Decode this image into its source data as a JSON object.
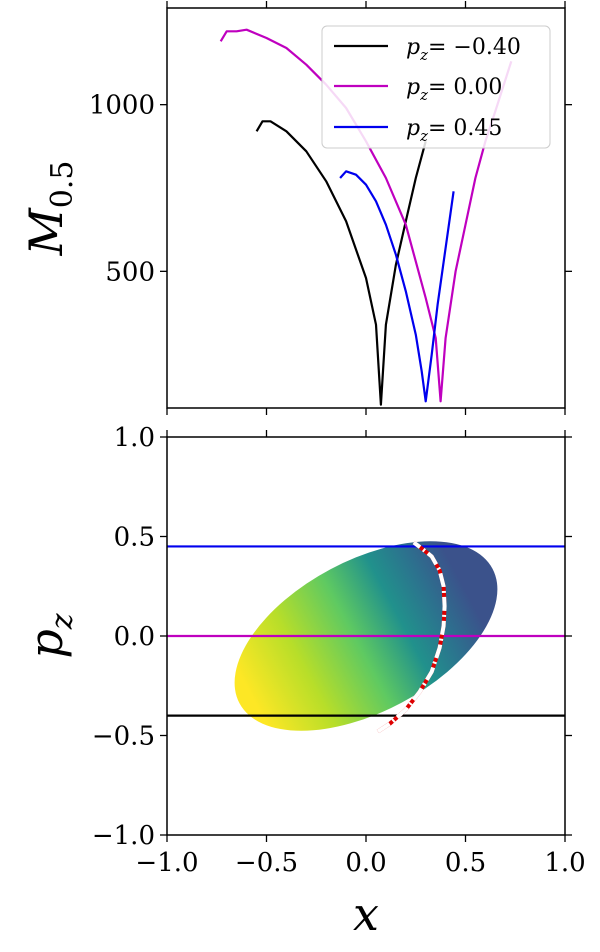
{
  "colors": {
    "black": "#000000",
    "magenta": "#bf00bf",
    "blue": "#0000ee",
    "dash_white": "#ffffff",
    "dash_red": "#dd0000",
    "colormap": "viridis"
  },
  "chart_data": [
    {
      "type": "line",
      "ylabel": "M_{0.5}",
      "ylabel_main": "M",
      "ylabel_sub": "0.5",
      "xlim": [
        -1.0,
        1.0
      ],
      "ylim": [
        90,
        1290
      ],
      "yticks": [
        500,
        1000
      ],
      "ytick_labels": [
        "500",
        "1000"
      ],
      "legend_position": "top-right",
      "series": [
        {
          "name": "p_z = −0.40",
          "legend_label": "= −0.40",
          "color_key": "black",
          "x": [
            -0.55,
            -0.52,
            -0.48,
            -0.4,
            -0.3,
            -0.2,
            -0.1,
            0.0,
            0.05,
            0.075,
            0.1,
            0.15,
            0.2,
            0.25,
            0.3
          ],
          "y": [
            920,
            950,
            950,
            920,
            860,
            770,
            650,
            480,
            340,
            100,
            340,
            520,
            650,
            780,
            890
          ]
        },
        {
          "name": "p_z = 0.00",
          "legend_label": "= 0.00",
          "color_key": "magenta",
          "x": [
            -0.73,
            -0.7,
            -0.65,
            -0.6,
            -0.5,
            -0.4,
            -0.3,
            -0.2,
            -0.1,
            0.0,
            0.1,
            0.2,
            0.3,
            0.35,
            0.375,
            0.4,
            0.45,
            0.5,
            0.55,
            0.6,
            0.65,
            0.73
          ],
          "y": [
            1190,
            1220,
            1220,
            1225,
            1200,
            1170,
            1120,
            1060,
            990,
            890,
            780,
            640,
            420,
            300,
            110,
            300,
            500,
            640,
            780,
            890,
            980,
            1130
          ]
        },
        {
          "name": "p_z = 0.45",
          "legend_label": "= 0.45",
          "color_key": "blue",
          "x": [
            -0.13,
            -0.1,
            -0.05,
            0.0,
            0.05,
            0.1,
            0.15,
            0.2,
            0.25,
            0.28,
            0.3,
            0.33,
            0.36,
            0.4,
            0.44
          ],
          "y": [
            780,
            800,
            790,
            760,
            710,
            640,
            550,
            440,
            310,
            200,
            110,
            250,
            400,
            570,
            740
          ]
        }
      ]
    },
    {
      "type": "heatmap",
      "xlabel": "x",
      "ylabel": "p_z",
      "ylabel_main": "p",
      "ylabel_sub": "z",
      "xlim": [
        -1.0,
        1.0
      ],
      "ylim": [
        -1.0,
        1.0
      ],
      "xticks": [
        -1.0,
        -0.5,
        0.0,
        0.5,
        1.0
      ],
      "xtick_labels": [
        "−1.0",
        "−0.5",
        "0.0",
        "0.5",
        "1.0"
      ],
      "yticks": [
        -1.0,
        -0.5,
        0.0,
        0.5,
        1.0
      ],
      "ytick_labels": [
        "−1.0",
        "−0.5",
        "0.0",
        "0.5",
        "1.0"
      ],
      "region": {
        "description_key": "ellipse",
        "center": [
          0.0,
          0.0
        ],
        "semi_axis_major": 0.72,
        "semi_axis_minor": 0.38,
        "rotation_deg": 28,
        "colormap": "viridis",
        "high_at_x": -0.65,
        "low_at_x": 0.55
      },
      "hlines": [
        {
          "y": 0.45,
          "color_key": "blue"
        },
        {
          "y": 0.0,
          "color_key": "magenta"
        },
        {
          "y": -0.4,
          "color_key": "black"
        }
      ],
      "dashed_curve": {
        "style": "dash-dot",
        "x": [
          0.06,
          0.12,
          0.2,
          0.27,
          0.33,
          0.37,
          0.39,
          0.395,
          0.39,
          0.37,
          0.33,
          0.28,
          0.24
        ],
        "y": [
          -0.48,
          -0.44,
          -0.37,
          -0.28,
          -0.18,
          -0.06,
          0.05,
          0.15,
          0.25,
          0.33,
          0.4,
          0.44,
          0.47
        ]
      }
    }
  ]
}
